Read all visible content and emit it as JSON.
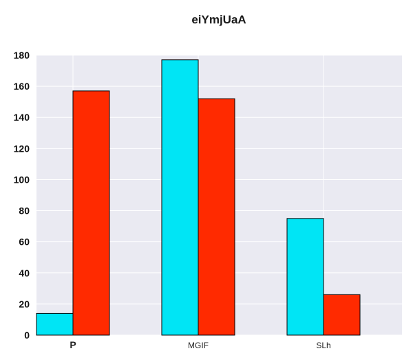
{
  "chart_data": {
    "type": "bar",
    "title": "eiYmjUaA",
    "xlabel": "",
    "ylabel": "",
    "categories": [
      "P",
      "MGIF",
      "SLh"
    ],
    "series": [
      {
        "values": [
          14,
          177,
          75
        ],
        "color": "#00e5f5"
      },
      {
        "values": [
          157,
          152,
          26
        ],
        "color": "#ff2a00"
      }
    ],
    "ylim": [
      0,
      180
    ],
    "yticks": [
      0,
      20,
      40,
      60,
      80,
      100,
      120,
      140,
      160,
      180
    ],
    "grid": true,
    "background": "#eaeaf2",
    "bold_categories": [
      "P"
    ]
  }
}
